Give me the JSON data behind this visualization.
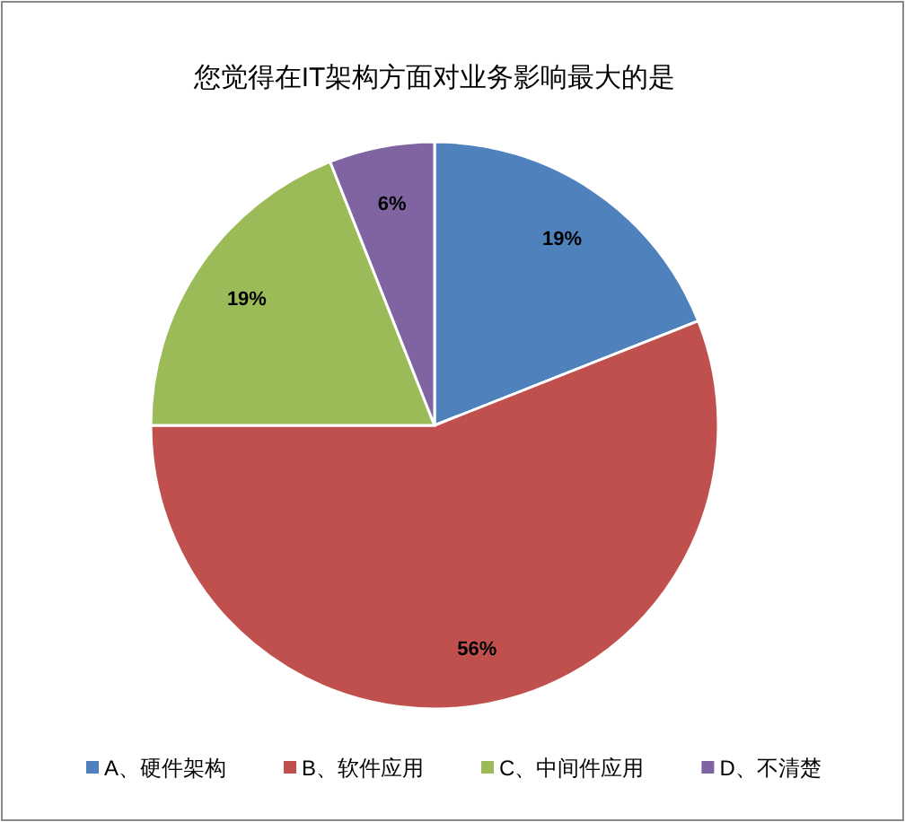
{
  "chart_data": {
    "type": "pie",
    "title": "您觉得在IT架构方面对业务影响最大的是",
    "categories": [
      "A、硬件架构",
      "B、软件应用",
      "C、中间件应用",
      "D、不清楚"
    ],
    "values": [
      19,
      56,
      19,
      6
    ],
    "colors": [
      "#4f81bd",
      "#c0504d",
      "#9bbb59",
      "#8064a2"
    ],
    "value_labels": [
      "19%",
      "56%",
      "19%",
      "6%"
    ],
    "legend": "bottom"
  }
}
